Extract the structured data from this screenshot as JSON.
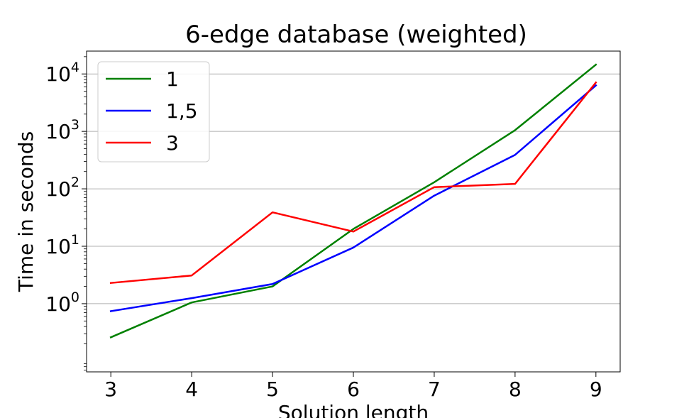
{
  "chart_data": {
    "type": "line",
    "title": "6-edge database (weighted)",
    "xlabel": "Solution length",
    "ylabel": "Time in seconds",
    "x": [
      3,
      4,
      5,
      6,
      7,
      8,
      9
    ],
    "xlim": [
      2.7,
      9.3
    ],
    "ylim": [
      0.065,
      25000
    ],
    "yscale": "log",
    "grid": "y-major",
    "legend_position": "top-left",
    "x_tick_labels": [
      "3",
      "4",
      "5",
      "6",
      "7",
      "8",
      "9"
    ],
    "y_tick_labels": [
      {
        "value": 1,
        "base": "10",
        "exp": "0"
      },
      {
        "value": 10,
        "base": "10",
        "exp": "1"
      },
      {
        "value": 100,
        "base": "10",
        "exp": "2"
      },
      {
        "value": 1000,
        "base": "10",
        "exp": "3"
      },
      {
        "value": 10000,
        "base": "10",
        "exp": "4"
      }
    ],
    "series": [
      {
        "name": "1",
        "color": "#008000",
        "values": [
          0.26,
          1.05,
          2.0,
          20,
          130,
          1050,
          14500
        ]
      },
      {
        "name": "1,5",
        "color": "#0000ff",
        "values": [
          0.74,
          1.25,
          2.2,
          9.5,
          76,
          390,
          6300
        ]
      },
      {
        "name": "3",
        "color": "#ff0000",
        "values": [
          2.3,
          3.1,
          39,
          18,
          107,
          122,
          7100
        ]
      }
    ]
  }
}
